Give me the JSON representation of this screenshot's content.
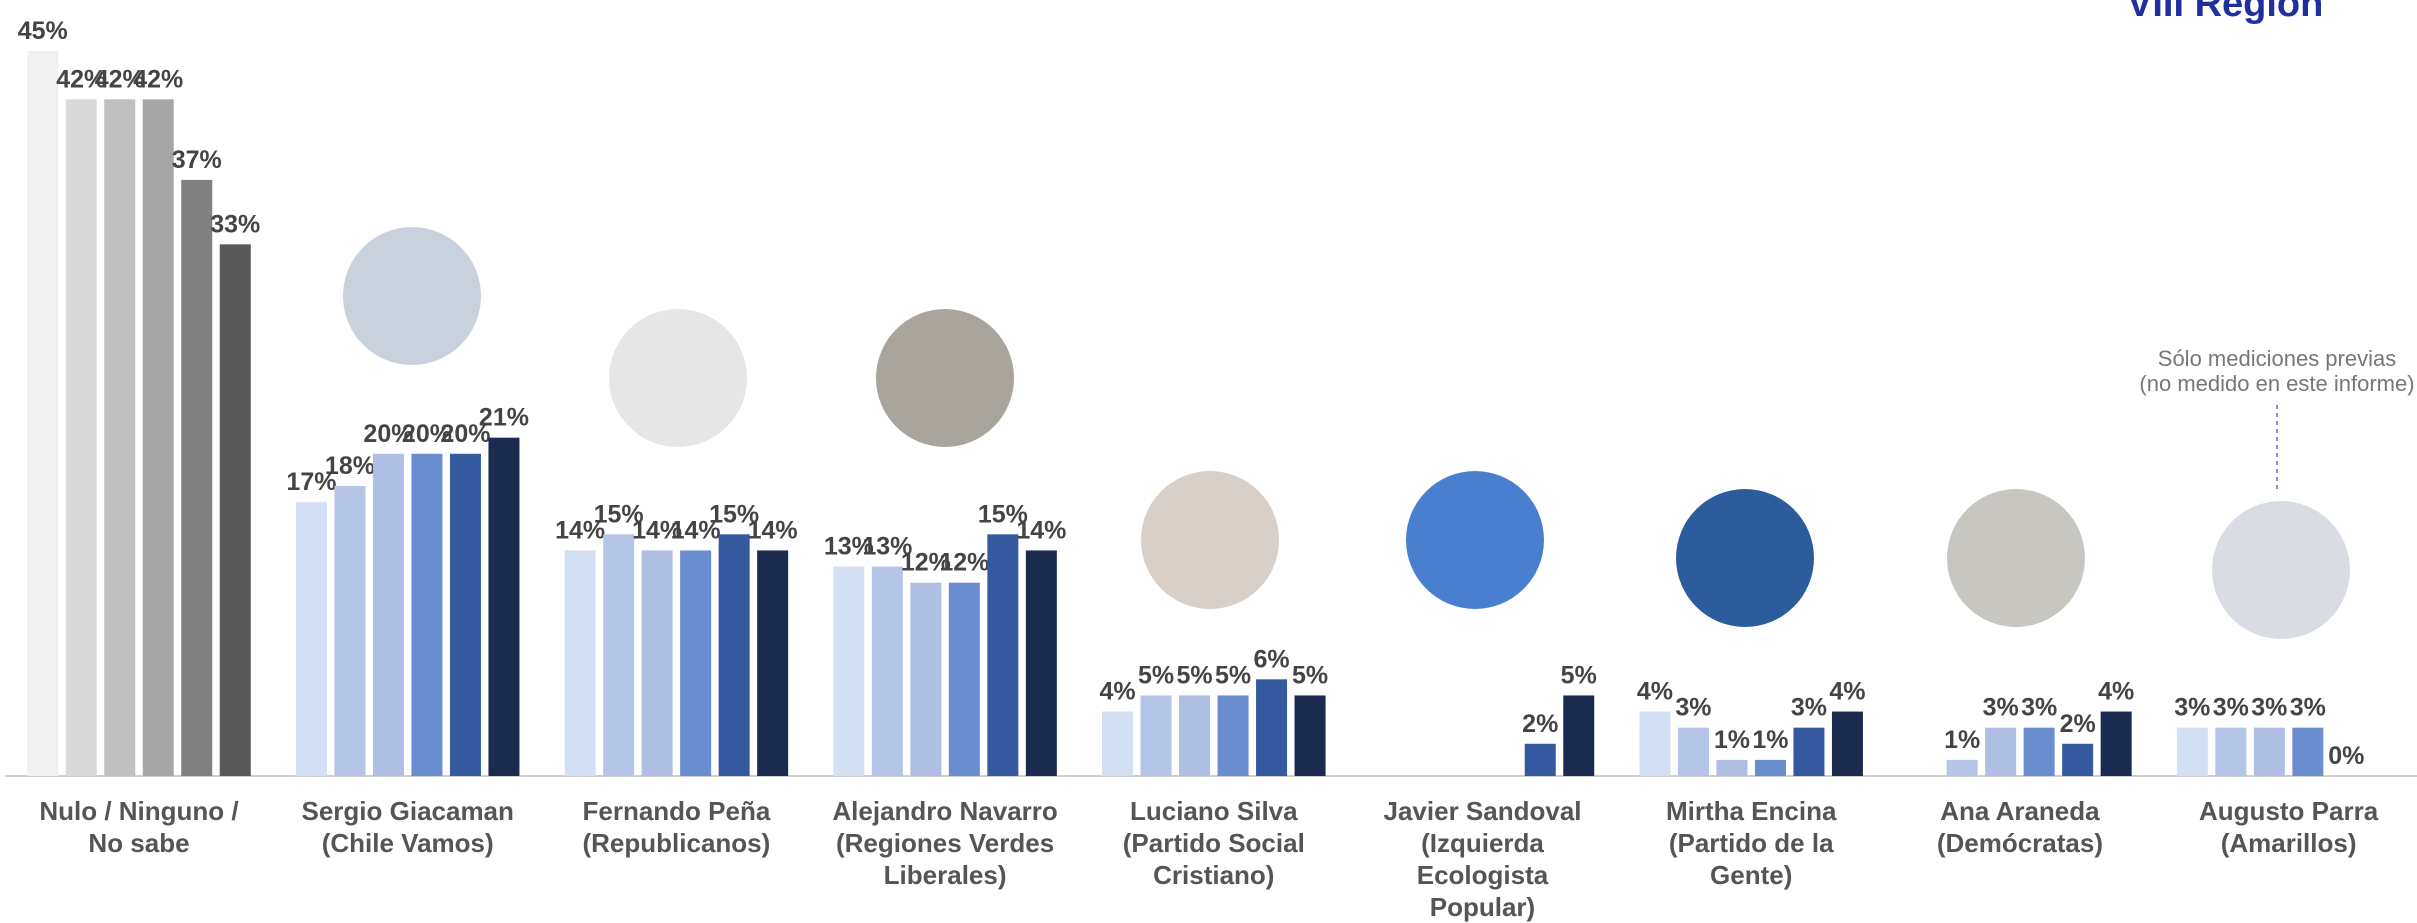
{
  "chart_data": {
    "type": "bar",
    "title": "VIII Región",
    "annotation": [
      "Sólo mediciones previas",
      "(no medido en este informe)"
    ],
    "categories": [
      "Nulo / Ninguno /\nNo sabe",
      "Sergio Giacaman\n(Chile Vamos)",
      "Fernando Peña\n(Republicanos)",
      "Alejandro Navarro\n(Regiones Verdes\nLiberales)",
      "Luciano Silva\n(Partido Social\nCristiano)",
      "Javier Sandoval\n(Izquierda\nEcologista\nPopular)",
      "Mirtha Encina\n(Partido de la\nGente)",
      "Ana Araneda\n(Demócratas)",
      "Augusto Parra\n(Amarillos)"
    ],
    "ylim": [
      0,
      45
    ],
    "first_category_colors": [
      "#f0f0f0",
      "#d9d9d9",
      "#bfbfbf",
      "#a6a6a6",
      "#808080",
      "#595959"
    ],
    "series": [
      {
        "color": "#d3dff3",
        "values": [
          45,
          17,
          14,
          13,
          4,
          null,
          4,
          null,
          3
        ],
        "value_labels": [
          "45%",
          "17%",
          "14%",
          "13%",
          "4%",
          null,
          "4%",
          null,
          "3%"
        ]
      },
      {
        "color": "#b4c5e7",
        "values": [
          42,
          18,
          15,
          13,
          5,
          null,
          3,
          1,
          3
        ],
        "value_labels": [
          "42%",
          "18%",
          "15%",
          "13%",
          "5%",
          null,
          "3%",
          "1%",
          "3%"
        ]
      },
      {
        "color": "#aebfe3",
        "values": [
          42,
          20,
          14,
          12,
          5,
          null,
          1,
          3,
          3
        ],
        "value_labels": [
          "42%",
          "20%",
          "14%",
          "12%",
          "5%",
          null,
          "1%",
          "3%",
          "3%"
        ]
      },
      {
        "color": "#6a8dcf",
        "values": [
          42,
          20,
          14,
          12,
          5,
          null,
          1,
          3,
          3
        ],
        "value_labels": [
          "42%",
          "20%",
          "14%",
          "12%",
          "5%",
          null,
          "1%",
          "3%",
          "3%"
        ]
      },
      {
        "color": "#34599f",
        "values": [
          37,
          20,
          15,
          15,
          6,
          2,
          3,
          2,
          0
        ],
        "value_labels": [
          "37%",
          "20%",
          "15%",
          "15%",
          "6%",
          "2%",
          "3%",
          "2%",
          "0%"
        ]
      },
      {
        "color": "#1b2b4f",
        "values": [
          33,
          21,
          14,
          14,
          5,
          5,
          4,
          4,
          null
        ],
        "value_labels": [
          "33%",
          "21%",
          "14%",
          "14%",
          "5%",
          "5%",
          "4%",
          "4%",
          null
        ]
      }
    ]
  }
}
